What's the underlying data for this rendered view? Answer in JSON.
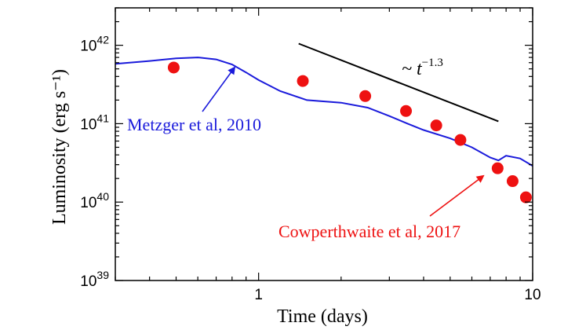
{
  "chart_data": {
    "type": "line",
    "xlabel": "Time (days)",
    "ylabel": "Luminosity (erg s⁻¹)",
    "x_scale": "log",
    "y_scale": "log",
    "xlim": [
      0.3,
      10
    ],
    "ylim": [
      1e+39,
      3e+42
    ],
    "x_ticks": [
      {
        "value": 1,
        "label": "1"
      },
      {
        "value": 10,
        "label": "10"
      }
    ],
    "y_ticks": [
      {
        "value": 1e+39,
        "base": "10",
        "exp": "39"
      },
      {
        "value": 1e+40,
        "base": "10",
        "exp": "40"
      },
      {
        "value": 1e+41,
        "base": "10",
        "exp": "41"
      },
      {
        "value": 1e+42,
        "base": "10",
        "exp": "42"
      }
    ],
    "grid": false,
    "series": [
      {
        "name": "Metzger et al, 2010",
        "kind": "line",
        "color": "#1a1adb",
        "x": [
          0.3,
          0.4,
          0.5,
          0.6,
          0.7,
          0.8,
          0.9,
          1.0,
          1.2,
          1.5,
          2.0,
          2.5,
          3.0,
          3.5,
          4.0,
          5.0,
          6.0,
          7.0,
          7.5,
          8.0,
          9.0,
          10.0
        ],
        "y": [
          5.8e+41,
          6.3e+41,
          6.8e+41,
          7e+41,
          6.6e+41,
          5.7e+41,
          4.5e+41,
          3.6e+41,
          2.6e+41,
          2e+41,
          1.85e+41,
          1.6e+41,
          1.25e+41,
          1e+41,
          8.3e+40,
          6.5e+40,
          5e+40,
          3.7e+40,
          3.4e+40,
          3.9e+40,
          3.6e+40,
          2.9e+40
        ]
      },
      {
        "name": "Cowperthwaite et al, 2017",
        "kind": "scatter",
        "color": "#ee1111",
        "x": [
          0.49,
          1.45,
          2.45,
          3.45,
          4.45,
          5.45,
          7.45,
          8.45,
          9.45
        ],
        "y": [
          5.2e+41,
          3.5e+41,
          2.25e+41,
          1.45e+41,
          9.5e+40,
          6.2e+40,
          2.7e+40,
          1.85e+40,
          1.15e+40
        ]
      }
    ],
    "reference_line": {
      "color": "#000000",
      "x": [
        1.4,
        7.5
      ],
      "y": [
        1.05e+42,
        1.07e+41
      ],
      "label_prefix": "~ t",
      "label_exp": "−1.3"
    },
    "annotations": [
      {
        "text": "Metzger et al, 2010",
        "color": "#1a1adb"
      },
      {
        "text": "Cowperthwaite et al, 2017",
        "color": "#ee1111"
      }
    ]
  }
}
